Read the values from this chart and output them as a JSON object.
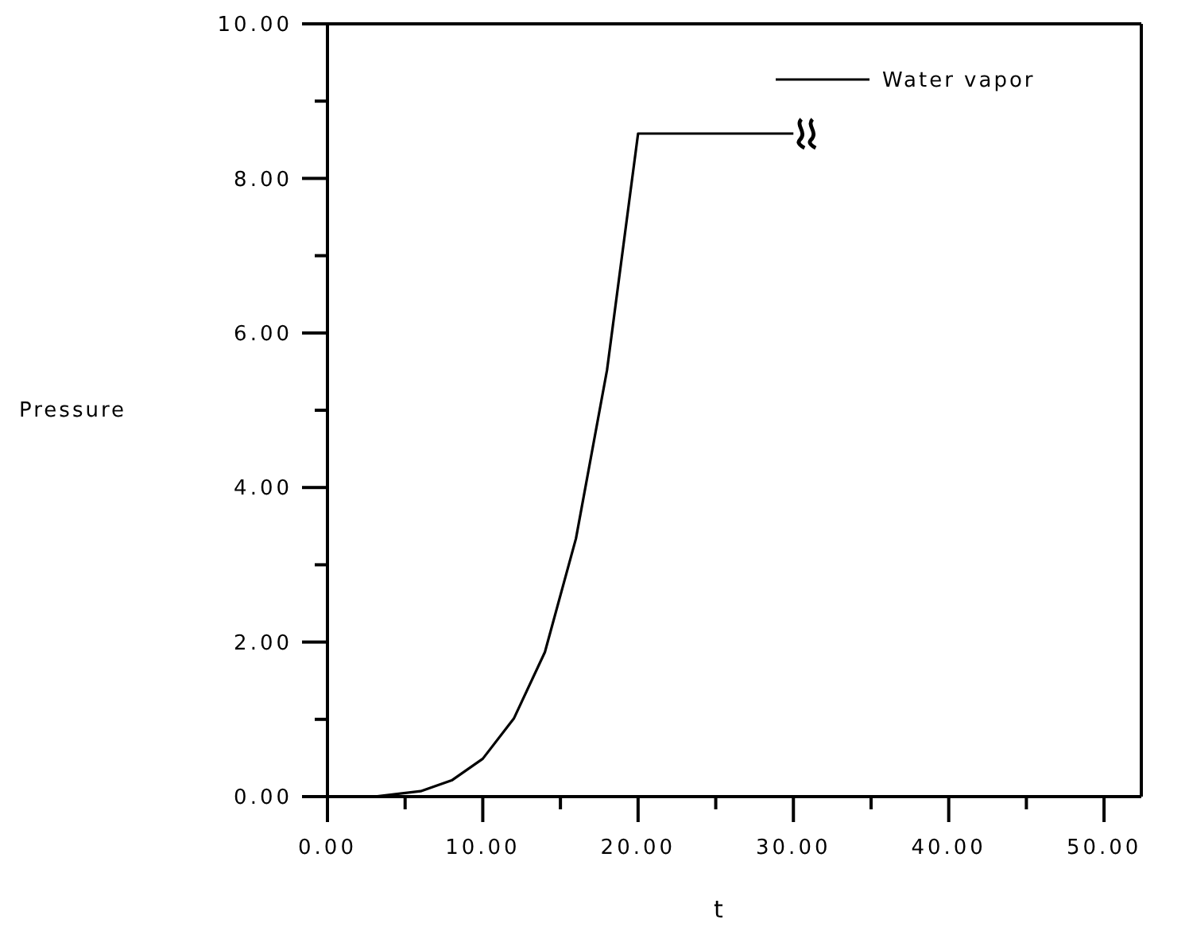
{
  "chart_data": {
    "type": "line",
    "xlabel": "t",
    "ylabel": "Pressure",
    "x": [
      3,
      6,
      8,
      10,
      12,
      14,
      16,
      18,
      20,
      30
    ],
    "series": [
      {
        "name": "Water vapor",
        "color": "#000000",
        "values": [
          0,
          0.07,
          0.21,
          0.49,
          1.01,
          1.87,
          3.34,
          5.52,
          8.58,
          8.58
        ]
      }
    ],
    "xlim": [
      0,
      52.4
    ],
    "xticks": [
      {
        "value": 0,
        "label": "0.00"
      },
      {
        "value": 5,
        "label": null
      },
      {
        "value": 10,
        "label": "10.00"
      },
      {
        "value": 15,
        "label": null
      },
      {
        "value": 20,
        "label": "20.00"
      },
      {
        "value": 25,
        "label": null
      },
      {
        "value": 30,
        "label": "30.00"
      },
      {
        "value": 35,
        "label": null
      },
      {
        "value": 40,
        "label": "40.00"
      },
      {
        "value": 45,
        "label": null
      },
      {
        "value": 50,
        "label": "50.00"
      }
    ],
    "ylim": [
      0,
      10
    ],
    "yticks": [
      {
        "value": 0,
        "label": "0.00"
      },
      {
        "value": 1,
        "label": null
      },
      {
        "value": 2,
        "label": "2.00"
      },
      {
        "value": 3,
        "label": null
      },
      {
        "value": 4,
        "label": "4.00"
      },
      {
        "value": 5,
        "label": null
      },
      {
        "value": 6,
        "label": "6.00"
      },
      {
        "value": 7,
        "label": null
      },
      {
        "value": 8,
        "label": "8.00"
      },
      {
        "value": 9,
        "label": null
      },
      {
        "value": 10,
        "label": "10.00"
      }
    ],
    "grid": false,
    "legend": "top right",
    "marker": "none",
    "line_style": "solid"
  }
}
